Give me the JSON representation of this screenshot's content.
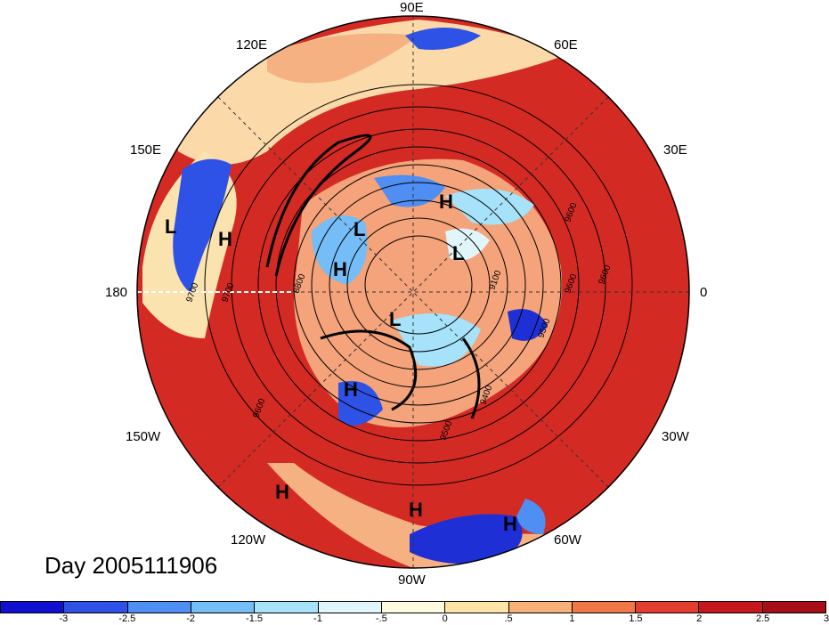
{
  "title": "Day 2005111906",
  "longitude_labels": {
    "n90e": "90E",
    "n120e": "120E",
    "n60e": "60E",
    "n150e": "150E",
    "n30e": "30E",
    "n180": "180",
    "n0": "0",
    "n150w": "150W",
    "n30w": "30W",
    "n120w": "120W",
    "n60w": "60W",
    "n90w": "90W"
  },
  "pressure_centers": [
    "L",
    "H",
    "L",
    "H",
    "H",
    "L",
    "L",
    "H",
    "H",
    "H",
    "H"
  ],
  "contour_labels": [
    "9700",
    "9700",
    "8800",
    "9600",
    "9100",
    "9600",
    "9500",
    "9600",
    "9400",
    "9500",
    "9600"
  ],
  "colorbar": {
    "colors": [
      "#1010d0",
      "#2f52e6",
      "#4f8ef2",
      "#74bdf6",
      "#a6e2fa",
      "#e0f6fb",
      "#fffbe0",
      "#fde5a8",
      "#f8b079",
      "#f07848",
      "#e33d30",
      "#c4181c",
      "#a50f15"
    ],
    "ticks": [
      "-3",
      "-2.5",
      "-2",
      "-1.5",
      "-1",
      "-.5",
      "0",
      ".5",
      "1",
      "1.5",
      "2",
      "2.5",
      "3"
    ]
  }
}
